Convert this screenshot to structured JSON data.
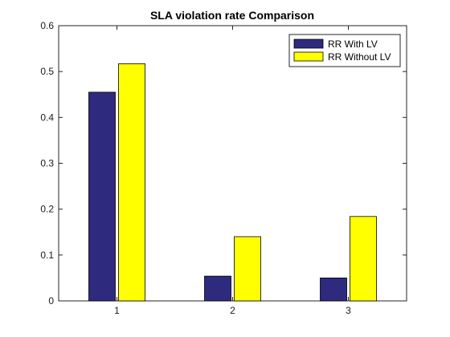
{
  "chart_data": {
    "type": "bar",
    "title": "SLA violation rate Comparison",
    "xlabel": "",
    "ylabel": "",
    "categories": [
      "1",
      "2",
      "3"
    ],
    "series": [
      {
        "name": "RR With LV",
        "values": [
          0.455,
          0.054,
          0.05
        ],
        "color": "#2e2a7e"
      },
      {
        "name": "RR Without LV",
        "values": [
          0.517,
          0.14,
          0.184
        ],
        "color": "#ffff00"
      }
    ],
    "ylim": [
      0,
      0.6
    ],
    "yticks": [
      "0",
      "0.1",
      "0.2",
      "0.3",
      "0.4",
      "0.5",
      "0.6"
    ],
    "grid": false,
    "legend_position": "top-right"
  }
}
